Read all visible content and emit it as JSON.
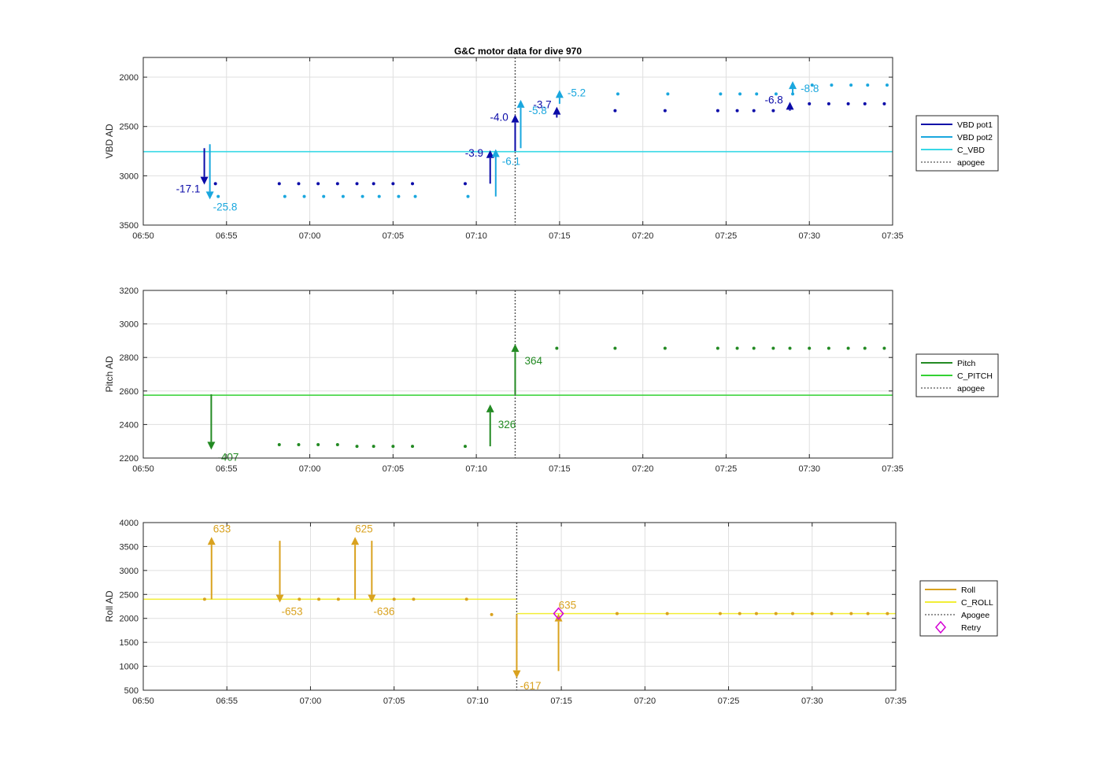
{
  "colors": {
    "vbd_pot1": "#0a0aa8",
    "vbd_pot2": "#1aa7de",
    "c_vbd": "#38d8e6",
    "pitch": "#238a23",
    "c_pitch": "#33d133",
    "roll": "#d9a21f",
    "c_roll": "#f2ee36",
    "apogee": "#555555",
    "retry": "#d400d4",
    "grid": "#dfdfdf",
    "axis": "#262626"
  },
  "chart_data": [
    {
      "type": "scatter",
      "title": "G&C motor data for dive 970",
      "xlabel": "",
      "ylabel": "VBD AD",
      "xlim": [
        "06:50",
        "07:35"
      ],
      "ylim": [
        3500,
        1800
      ],
      "y_reversed": true,
      "xticks": [
        "06:50",
        "06:55",
        "07:00",
        "07:05",
        "07:10",
        "07:15",
        "07:20",
        "07:25",
        "07:30",
        "07:35"
      ],
      "yticks": [
        2000,
        2500,
        3000,
        3500
      ],
      "grid": true,
      "legend": {
        "location": "right",
        "entries": [
          {
            "label": "VBD pot1",
            "style": "line",
            "color_key": "vbd_pot1"
          },
          {
            "label": "VBD pot2",
            "style": "line",
            "color_key": "vbd_pot2"
          },
          {
            "label": "C_VBD",
            "style": "line",
            "color_key": "c_vbd"
          },
          {
            "label": "apogee",
            "style": "dotted",
            "color_key": "apogee"
          }
        ]
      },
      "apogee_x": "07:12:20",
      "ref_lines": [
        {
          "name": "C_VBD",
          "y": 2755,
          "color_key": "c_vbd"
        }
      ],
      "series": [
        {
          "name": "VBD pot1",
          "color_key": "vbd_pot1",
          "marker": "dot",
          "x": [
            "06:54:20",
            "06:58:10",
            "06:59:20",
            "07:00:30",
            "07:01:40",
            "07:02:50",
            "07:03:50",
            "07:05:00",
            "07:06:10",
            "07:09:20",
            "07:14:50",
            "07:18:20",
            "07:21:20",
            "07:24:30",
            "07:25:40",
            "07:26:40",
            "07:27:50",
            "07:28:50",
            "07:30:00",
            "07:31:10",
            "07:32:20",
            "07:33:20",
            "07:34:30"
          ],
          "y": [
            3080,
            3080,
            3080,
            3080,
            3080,
            3080,
            3080,
            3080,
            3080,
            3080,
            2340,
            2340,
            2340,
            2340,
            2340,
            2340,
            2340,
            2300,
            2270,
            2270,
            2270,
            2270,
            2270
          ]
        },
        {
          "name": "VBD pot2",
          "color_key": "vbd_pot2",
          "marker": "dot",
          "x": [
            "06:54:30",
            "06:58:30",
            "06:59:40",
            "07:00:50",
            "07:02:00",
            "07:03:10",
            "07:04:10",
            "07:05:20",
            "07:06:20",
            "07:09:30",
            "07:15:00",
            "07:18:30",
            "07:21:30",
            "07:24:40",
            "07:25:50",
            "07:26:50",
            "07:28:00",
            "07:29:00",
            "07:30:10",
            "07:31:20",
            "07:32:30",
            "07:33:30",
            "07:34:40"
          ],
          "y": [
            3210,
            3210,
            3210,
            3210,
            3210,
            3210,
            3210,
            3210,
            3210,
            3210,
            2170,
            2170,
            2170,
            2170,
            2170,
            2170,
            2170,
            2170,
            2080,
            2080,
            2080,
            2080,
            2080
          ]
        }
      ],
      "moves": [
        {
          "series": "VBD pot1",
          "color_key": "vbd_pot1",
          "x": "06:53:40",
          "y_from": 2720,
          "y_to": 3090,
          "label": "-17.1",
          "label_dx": -36,
          "label_dy": 10
        },
        {
          "series": "VBD pot2",
          "color_key": "vbd_pot2",
          "x": "06:54:00",
          "y_from": 2680,
          "y_to": 3240,
          "label": "-25.8",
          "label_dx": 4,
          "label_dy": 14
        },
        {
          "series": "VBD pot1",
          "color_key": "vbd_pot1",
          "x": "07:10:50",
          "y_from": 3080,
          "y_to": 2740,
          "label": "-3.9",
          "label_dx": -32,
          "label_dy": 8
        },
        {
          "series": "VBD pot2",
          "color_key": "vbd_pot2",
          "x": "07:11:10",
          "y_from": 3210,
          "y_to": 2730,
          "label": "-6.1",
          "label_dx": 8,
          "label_dy": 20
        },
        {
          "series": "VBD pot1",
          "color_key": "vbd_pot1",
          "x": "07:12:20",
          "y_from": 2750,
          "y_to": 2380,
          "label": "-4.0",
          "label_dx": -32,
          "label_dy": 8
        },
        {
          "series": "VBD pot2",
          "color_key": "vbd_pot2",
          "x": "07:12:40",
          "y_from": 2720,
          "y_to": 2230,
          "label": "-5.8",
          "label_dx": 10,
          "label_dy": 18
        },
        {
          "series": "VBD pot1",
          "color_key": "vbd_pot1",
          "x": "07:14:50",
          "y_from": 2410,
          "y_to": 2300,
          "label": "-3.7",
          "label_dx": -30,
          "label_dy": 2
        },
        {
          "series": "VBD pot2",
          "color_key": "vbd_pot2",
          "x": "07:15:00",
          "y_from": 2270,
          "y_to": 2130,
          "label": "-5.2",
          "label_dx": 10,
          "label_dy": 8
        },
        {
          "series": "VBD pot1",
          "color_key": "vbd_pot1",
          "x": "07:28:50",
          "y_from": 2340,
          "y_to": 2250,
          "label": "-6.8",
          "label_dx": -32,
          "label_dy": 2
        },
        {
          "series": "VBD pot2",
          "color_key": "vbd_pot2",
          "x": "07:29:00",
          "y_from": 2170,
          "y_to": 2040,
          "label": "-8.8",
          "label_dx": 10,
          "label_dy": 14
        }
      ]
    },
    {
      "type": "scatter",
      "title": "",
      "xlabel": "",
      "ylabel": "Pitch AD",
      "xlim": [
        "06:50",
        "07:35"
      ],
      "ylim": [
        2200,
        3200
      ],
      "xticks": [
        "06:50",
        "06:55",
        "07:00",
        "07:05",
        "07:10",
        "07:15",
        "07:20",
        "07:25",
        "07:30",
        "07:35"
      ],
      "yticks": [
        2200,
        2400,
        2600,
        2800,
        3000,
        3200
      ],
      "grid": true,
      "legend": {
        "location": "right",
        "entries": [
          {
            "label": "Pitch",
            "style": "line",
            "color_key": "pitch"
          },
          {
            "label": "C_PITCH",
            "style": "line",
            "color_key": "c_pitch"
          },
          {
            "label": "apogee",
            "style": "dotted",
            "color_key": "apogee"
          }
        ]
      },
      "apogee_x": "07:12:20",
      "ref_lines": [
        {
          "name": "C_PITCH",
          "y": 2575,
          "color_key": "c_pitch"
        }
      ],
      "series": [
        {
          "name": "Pitch",
          "color_key": "pitch",
          "marker": "dot",
          "x": [
            "06:58:10",
            "06:59:20",
            "07:00:30",
            "07:01:40",
            "07:02:50",
            "07:03:50",
            "07:05:00",
            "07:06:10",
            "07:09:20",
            "07:14:50",
            "07:18:20",
            "07:21:20",
            "07:24:30",
            "07:25:40",
            "07:26:40",
            "07:27:50",
            "07:28:50",
            "07:30:00",
            "07:31:10",
            "07:32:20",
            "07:33:20",
            "07:34:30"
          ],
          "y": [
            2280,
            2280,
            2280,
            2280,
            2270,
            2270,
            2270,
            2270,
            2270,
            2855,
            2855,
            2855,
            2855,
            2855,
            2855,
            2855,
            2855,
            2855,
            2855,
            2855,
            2855,
            2855
          ]
        }
      ],
      "moves": [
        {
          "series": "Pitch",
          "color_key": "pitch",
          "x": "06:54:05",
          "y_from": 2580,
          "y_to": 2250,
          "label": "-407",
          "label_dx": 8,
          "label_dy": 14
        },
        {
          "series": "Pitch",
          "color_key": "pitch",
          "x": "07:10:50",
          "y_from": 2270,
          "y_to": 2520,
          "label": "326",
          "label_dx": 10,
          "label_dy": 30
        },
        {
          "series": "Pitch",
          "color_key": "pitch",
          "x": "07:12:20",
          "y_from": 2580,
          "y_to": 2880,
          "label": "364",
          "label_dx": 12,
          "label_dy": 26
        }
      ]
    },
    {
      "type": "scatter",
      "title": "",
      "xlabel": "",
      "ylabel": "Roll AD",
      "xlim": [
        "06:50",
        "07:35"
      ],
      "ylim": [
        500,
        4000
      ],
      "xticks": [
        "06:50",
        "06:55",
        "07:00",
        "07:05",
        "07:10",
        "07:15",
        "07:20",
        "07:25",
        "07:30",
        "07:35"
      ],
      "yticks": [
        500,
        1000,
        1500,
        2000,
        2500,
        3000,
        3500,
        4000
      ],
      "grid": true,
      "legend": {
        "location": "right",
        "entries": [
          {
            "label": "Roll",
            "style": "line",
            "color_key": "roll"
          },
          {
            "label": "C_ROLL",
            "style": "line",
            "color_key": "c_roll"
          },
          {
            "label": "Apogee",
            "style": "dotted",
            "color_key": "apogee"
          },
          {
            "label": "Retry",
            "style": "diamond",
            "color_key": "retry"
          }
        ]
      },
      "apogee_x": "07:12:20",
      "ref_lines": [
        {
          "name": "C_ROLL",
          "y": 2400,
          "x_from": "06:50",
          "x_to": "07:12:20",
          "color_key": "c_roll"
        },
        {
          "name": "C_ROLL",
          "y": 2100,
          "x_from": "07:12:20",
          "x_to": "07:35",
          "color_key": "c_roll"
        }
      ],
      "retry_points": [
        {
          "x": "07:14:50",
          "y": 2100
        }
      ],
      "series": [
        {
          "name": "Roll",
          "color_key": "roll",
          "marker": "dot",
          "x": [
            "06:53:40",
            "06:59:20",
            "07:00:30",
            "07:01:40",
            "07:05:00",
            "07:06:10",
            "07:09:20",
            "07:10:50",
            "07:18:20",
            "07:21:20",
            "07:24:30",
            "07:25:40",
            "07:26:40",
            "07:27:50",
            "07:28:50",
            "07:30:00",
            "07:31:10",
            "07:32:20",
            "07:33:20",
            "07:34:30"
          ],
          "y": [
            2400,
            2400,
            2400,
            2400,
            2400,
            2400,
            2400,
            2080,
            2100,
            2100,
            2100,
            2100,
            2100,
            2100,
            2100,
            2100,
            2100,
            2100,
            2100,
            2100
          ]
        }
      ],
      "moves": [
        {
          "series": "Roll",
          "color_key": "roll",
          "x": "06:54:05",
          "y_from": 2400,
          "y_to": 3700,
          "label": "633",
          "label_dx": 2,
          "label_dy": -6
        },
        {
          "series": "Roll",
          "color_key": "roll",
          "x": "06:58:10",
          "y_from": 3620,
          "y_to": 2330,
          "label": "-653",
          "label_dx": 2,
          "label_dy": 16
        },
        {
          "series": "Roll",
          "color_key": "roll",
          "x": "07:02:40",
          "y_from": 2400,
          "y_to": 3700,
          "label": "625",
          "label_dx": 0,
          "label_dy": -6
        },
        {
          "series": "Roll",
          "color_key": "roll",
          "x": "07:03:40",
          "y_from": 3620,
          "y_to": 2330,
          "label": "-636",
          "label_dx": 2,
          "label_dy": 16
        },
        {
          "series": "Roll",
          "color_key": "roll",
          "x": "07:12:20",
          "y_from": 2080,
          "y_to": 750,
          "label": "-617",
          "label_dx": 4,
          "label_dy": 14
        },
        {
          "series": "Roll",
          "color_key": "roll",
          "x": "07:14:50",
          "y_from": 900,
          "y_to": 2100,
          "label": "635",
          "label_dx": 0,
          "label_dy": -6
        }
      ]
    }
  ]
}
